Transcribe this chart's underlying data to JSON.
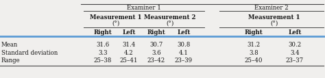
{
  "examiner1_label": "Examiner 1",
  "examiner2_label": "Examiner 2",
  "meas_labels": [
    "Measurement 1",
    "Measurement 2",
    "Measurement 1"
  ],
  "degree_symbol": "(°)",
  "col_headers": [
    "Right",
    "Left",
    "Right",
    "Left",
    "Right",
    "Left"
  ],
  "row_labels": [
    "Mean",
    "Standard deviation",
    "Range"
  ],
  "data": [
    [
      "31.6",
      "31.4",
      "30.7",
      "30.8",
      "31.2",
      "30.2"
    ],
    [
      "3.3",
      "4.2",
      "3.6",
      "4.1",
      "3.8",
      "3.4"
    ],
    [
      "25–38",
      "25–41",
      "23–42",
      "23–39",
      "25–40",
      "23–37"
    ]
  ],
  "bg_color": "#f0efed",
  "text_color": "#1a1a1a",
  "line_color": "#444444",
  "blue_line_color": "#5b9bd5",
  "font_size": 6.2,
  "header_font_size": 6.2
}
